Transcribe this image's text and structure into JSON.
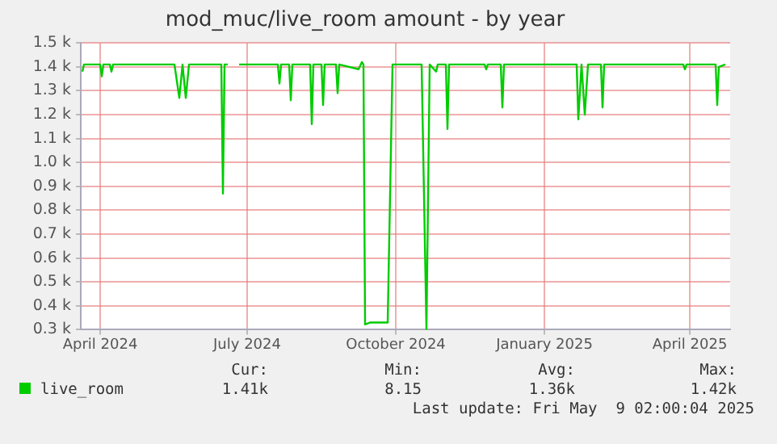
{
  "chart_data": {
    "type": "line",
    "title": "mod_muc/live_room amount - by year",
    "x": [
      "2024-03-21",
      "2024-03-22",
      "2024-04-01",
      "2024-04-02",
      "2024-04-03",
      "2024-04-07",
      "2024-04-08",
      "2024-04-09",
      "2024-05-17",
      "2024-05-20",
      "2024-05-22",
      "2024-05-24",
      "2024-05-26",
      "2024-06-15",
      "2024-06-16",
      "2024-06-17",
      "2024-06-19",
      "2024-06-22",
      "2024-06-26",
      "2024-07-20",
      "2024-07-21",
      "2024-07-22",
      "2024-07-27",
      "2024-07-28",
      "2024-07-29",
      "2024-08-09",
      "2024-08-10",
      "2024-08-11",
      "2024-08-16",
      "2024-08-17",
      "2024-08-18",
      "2024-08-25",
      "2024-08-26",
      "2024-08-27",
      "2024-09-08",
      "2024-09-10",
      "2024-09-11",
      "2024-09-12",
      "2024-09-15",
      "2024-09-26",
      "2024-09-29",
      "2024-10-17",
      "2024-10-20",
      "2024-10-22",
      "2024-10-26",
      "2024-10-27",
      "2024-11-01",
      "2024-11-02",
      "2024-11-03",
      "2024-11-25",
      "2024-11-26",
      "2024-11-27",
      "2024-12-05",
      "2024-12-06",
      "2024-12-07",
      "2025-01-21",
      "2025-01-22",
      "2025-01-24",
      "2025-01-26",
      "2025-01-28",
      "2025-02-05",
      "2025-02-06",
      "2025-02-07",
      "2025-03-28",
      "2025-03-29",
      "2025-03-30",
      "2025-04-17",
      "2025-04-18",
      "2025-04-19",
      "2025-04-23"
    ],
    "series": [
      {
        "name": "live_room",
        "color": "#00cc00",
        "values": [
          1380,
          1410,
          1410,
          1360,
          1410,
          1410,
          1380,
          1410,
          1410,
          1270,
          1410,
          1270,
          1410,
          1410,
          870,
          1410,
          1410,
          null,
          1410,
          1410,
          1330,
          1410,
          1410,
          1260,
          1410,
          1410,
          1160,
          1410,
          1410,
          1240,
          1410,
          1410,
          1290,
          1410,
          1390,
          1420,
          1410,
          322,
          330,
          330,
          1410,
          1410,
          300,
          1410,
          1380,
          1410,
          1410,
          1140,
          1410,
          1410,
          1390,
          1410,
          1410,
          1230,
          1410,
          1410,
          1180,
          1410,
          1200,
          1410,
          1410,
          1230,
          1410,
          1410,
          1390,
          1410,
          1410,
          1240,
          1400,
          1410
        ]
      }
    ],
    "xlim": [
      "2024-03-20",
      "2025-04-26"
    ],
    "xticks": [
      {
        "value": "2024-04-01",
        "label": "April 2024"
      },
      {
        "value": "2024-07-01",
        "label": "July 2024"
      },
      {
        "value": "2024-10-01",
        "label": "October 2024"
      },
      {
        "value": "2025-01-01",
        "label": "January 2025"
      },
      {
        "value": "2025-04-01",
        "label": "April 2025"
      }
    ],
    "ylim": [
      300,
      1500
    ],
    "yticks": [
      {
        "value": 300,
        "label": "0.3 k"
      },
      {
        "value": 400,
        "label": "0.4 k"
      },
      {
        "value": 500,
        "label": "0.5 k"
      },
      {
        "value": 600,
        "label": "0.6 k"
      },
      {
        "value": 700,
        "label": "0.7 k"
      },
      {
        "value": 800,
        "label": "0.8 k"
      },
      {
        "value": 900,
        "label": "0.9 k"
      },
      {
        "value": 1000,
        "label": "1.0 k"
      },
      {
        "value": 1100,
        "label": "1.1 k"
      },
      {
        "value": 1200,
        "label": "1.2 k"
      },
      {
        "value": 1300,
        "label": "1.3 k"
      },
      {
        "value": 1400,
        "label": "1.4 k"
      },
      {
        "value": 1500,
        "label": "1.5 k"
      }
    ],
    "grid": true,
    "legend": "bottom",
    "marker": "none",
    "line_style": "solid",
    "annotations": [
      "Cur:",
      "Min:",
      "Avg:",
      "Max:",
      "1.41k",
      "8.15",
      "1.36k",
      "1.42k",
      "Last update: Fri May  9 02:00:04 2025"
    ]
  }
}
